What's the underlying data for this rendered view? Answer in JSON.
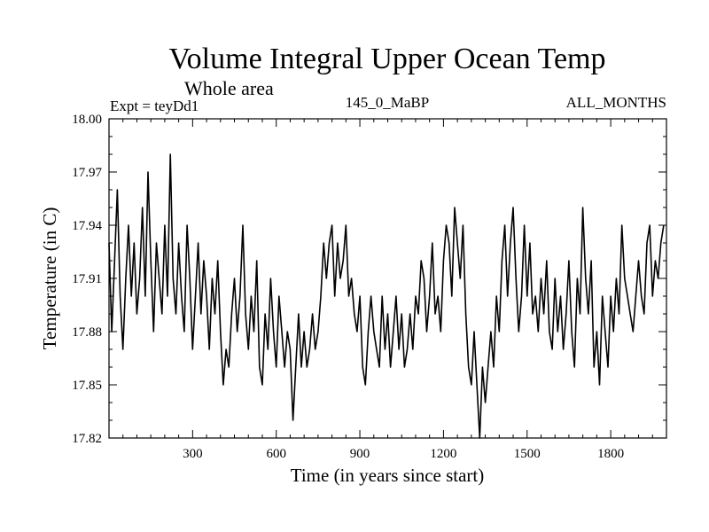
{
  "chart_data": {
    "type": "line",
    "title": "Volume Integral Upper Ocean Temp",
    "subtitle": "Whole area",
    "experiment": "Expt = teyDd1",
    "period": "145_0_MaBP",
    "months": "ALL_MONTHS",
    "xlabel": "Time (in years since start)",
    "ylabel": "Temperature (in C)",
    "xlim": [
      0,
      2000
    ],
    "ylim": [
      17.82,
      18.0
    ],
    "xticks": [
      300,
      600,
      900,
      1200,
      1500,
      1800
    ],
    "xtick_labels": [
      "300",
      "600",
      "900",
      "1200",
      "1500",
      "1800"
    ],
    "yticks": [
      17.82,
      17.85,
      17.88,
      17.91,
      17.94,
      17.97,
      18.0
    ],
    "ytick_labels": [
      "17.82",
      "17.85",
      "17.88",
      "17.91",
      "17.94",
      "17.97",
      "18.00"
    ],
    "grid": false,
    "series": [
      {
        "name": "Volume integral upper ocean temperature",
        "x_start": 0,
        "x_step": 10,
        "values": [
          17.93,
          17.88,
          17.92,
          17.96,
          17.9,
          17.87,
          17.91,
          17.94,
          17.9,
          17.93,
          17.89,
          17.91,
          17.95,
          17.9,
          17.97,
          17.92,
          17.88,
          17.93,
          17.91,
          17.89,
          17.94,
          17.9,
          17.98,
          17.91,
          17.89,
          17.93,
          17.9,
          17.88,
          17.94,
          17.91,
          17.87,
          17.9,
          17.93,
          17.89,
          17.92,
          17.9,
          17.87,
          17.91,
          17.89,
          17.92,
          17.88,
          17.85,
          17.87,
          17.86,
          17.89,
          17.91,
          17.88,
          17.9,
          17.94,
          17.89,
          17.87,
          17.9,
          17.88,
          17.92,
          17.86,
          17.85,
          17.89,
          17.87,
          17.91,
          17.88,
          17.86,
          17.9,
          17.88,
          17.86,
          17.88,
          17.87,
          17.83,
          17.86,
          17.89,
          17.86,
          17.88,
          17.86,
          17.87,
          17.89,
          17.87,
          17.88,
          17.9,
          17.93,
          17.91,
          17.93,
          17.94,
          17.9,
          17.93,
          17.91,
          17.92,
          17.94,
          17.9,
          17.91,
          17.89,
          17.88,
          17.9,
          17.86,
          17.85,
          17.88,
          17.9,
          17.88,
          17.87,
          17.86,
          17.9,
          17.87,
          17.89,
          17.86,
          17.88,
          17.9,
          17.87,
          17.89,
          17.86,
          17.87,
          17.89,
          17.87,
          17.9,
          17.89,
          17.92,
          17.91,
          17.88,
          17.9,
          17.93,
          17.89,
          17.9,
          17.88,
          17.92,
          17.94,
          17.93,
          17.9,
          17.95,
          17.93,
          17.91,
          17.94,
          17.89,
          17.86,
          17.85,
          17.88,
          17.85,
          17.82,
          17.86,
          17.84,
          17.86,
          17.88,
          17.86,
          17.9,
          17.88,
          17.92,
          17.94,
          17.9,
          17.93,
          17.95,
          17.91,
          17.88,
          17.9,
          17.94,
          17.9,
          17.93,
          17.89,
          17.9,
          17.88,
          17.91,
          17.89,
          17.92,
          17.88,
          17.87,
          17.91,
          17.88,
          17.9,
          17.87,
          17.89,
          17.92,
          17.88,
          17.86,
          17.91,
          17.89,
          17.95,
          17.91,
          17.89,
          17.92,
          17.86,
          17.88,
          17.85,
          17.9,
          17.88,
          17.86,
          17.9,
          17.88,
          17.91,
          17.89,
          17.94,
          17.91,
          17.9,
          17.89,
          17.88,
          17.9,
          17.92,
          17.9,
          17.89,
          17.93,
          17.94,
          17.9,
          17.92,
          17.91,
          17.93,
          17.94
        ]
      }
    ]
  }
}
